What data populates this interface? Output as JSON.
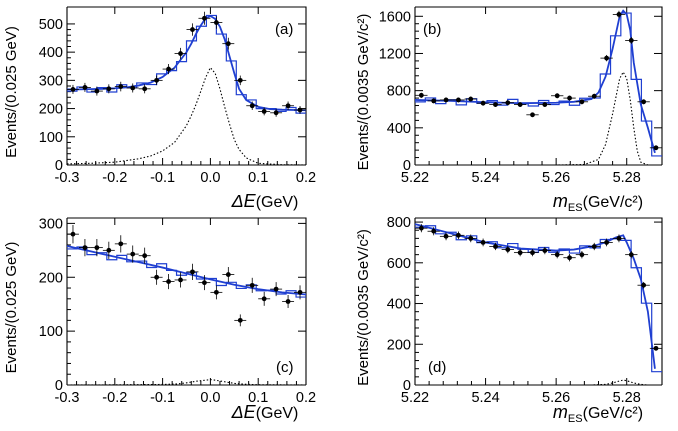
{
  "chart_data": [
    {
      "id": "a",
      "type": "scatter",
      "panel_label": "(a)",
      "ylabel": "Events/(0.025 GeV)",
      "xlabel_symbol": "ΔE",
      "xlabel_unit": "(GeV)",
      "xlim": [
        -0.3,
        0.2
      ],
      "ylim": [
        0,
        560
      ],
      "xticks": [
        -0.3,
        -0.2,
        -0.1,
        0,
        0.1,
        0.2
      ],
      "xtick_labels": [
        "-0.3",
        "-0.2",
        "-0.1",
        "0.0",
        "0.1",
        "0.2"
      ],
      "yticks": [
        0,
        100,
        200,
        300,
        400,
        500
      ],
      "ytick_labels": [
        "0",
        "100",
        "200",
        "300",
        "400",
        "500"
      ],
      "data_points": {
        "x": [
          -0.2875,
          -0.2625,
          -0.2375,
          -0.2125,
          -0.1875,
          -0.1625,
          -0.1375,
          -0.1125,
          -0.0875,
          -0.0625,
          -0.0375,
          -0.0125,
          0.0125,
          0.0375,
          0.0625,
          0.0875,
          0.1125,
          0.1375,
          0.1625,
          0.1875
        ],
        "y": [
          268,
          275,
          262,
          270,
          278,
          273,
          270,
          300,
          340,
          395,
          480,
          520,
          505,
          430,
          300,
          210,
          190,
          185,
          210,
          195
        ],
        "yerr": [
          16,
          16,
          16,
          16,
          17,
          16,
          16,
          17,
          18,
          20,
          22,
          23,
          22,
          21,
          17,
          15,
          14,
          14,
          15,
          14
        ]
      },
      "fit_total": {
        "x": [
          -0.3,
          -0.275,
          -0.25,
          -0.225,
          -0.2,
          -0.175,
          -0.15,
          -0.125,
          -0.1,
          -0.075,
          -0.05,
          -0.04,
          -0.03,
          -0.02,
          -0.01,
          0.0,
          0.01,
          0.02,
          0.03,
          0.04,
          0.05,
          0.06,
          0.075,
          0.1,
          0.125,
          0.15,
          0.175,
          0.2
        ],
        "y": [
          268,
          268,
          269,
          270,
          272,
          275,
          282,
          292,
          312,
          345,
          400,
          430,
          465,
          495,
          520,
          528,
          518,
          490,
          445,
          385,
          325,
          270,
          230,
          206,
          198,
          196,
          195,
          194
        ]
      },
      "fit_signal": {
        "x": [
          -0.3,
          -0.25,
          -0.2,
          -0.15,
          -0.125,
          -0.1,
          -0.075,
          -0.05,
          -0.04,
          -0.03,
          -0.02,
          -0.01,
          0.0,
          0.01,
          0.02,
          0.03,
          0.04,
          0.05,
          0.06,
          0.075,
          0.1,
          0.15,
          0.2
        ],
        "y": [
          4,
          6,
          10,
          22,
          32,
          50,
          80,
          140,
          175,
          215,
          262,
          310,
          345,
          325,
          270,
          205,
          145,
          90,
          55,
          25,
          6,
          1,
          0
        ]
      }
    },
    {
      "id": "b",
      "type": "scatter",
      "panel_label": "(b)",
      "ylabel": "Events/(0.0035 GeV/c²)",
      "xlabel_symbol": "m",
      "xlabel_subscript": "ES",
      "xlabel_unit": "(GeV/c²)",
      "xlim": [
        5.22,
        5.29
      ],
      "ylim": [
        0,
        1700
      ],
      "xticks": [
        5.22,
        5.24,
        5.26,
        5.28
      ],
      "xtick_labels": [
        "5.22",
        "5.24",
        "5.26",
        "5.28"
      ],
      "yticks": [
        0,
        400,
        800,
        1200,
        1600
      ],
      "ytick_labels": [
        "0",
        "400",
        "800",
        "1200",
        "1600"
      ],
      "data_points": {
        "x": [
          5.2218,
          5.2253,
          5.2288,
          5.2323,
          5.2358,
          5.2393,
          5.2428,
          5.2463,
          5.2498,
          5.2533,
          5.2568,
          5.2603,
          5.2638,
          5.2673,
          5.2708,
          5.2743,
          5.2778,
          5.2813,
          5.2848,
          5.2883
        ],
        "y": [
          750,
          690,
          700,
          700,
          710,
          665,
          650,
          670,
          650,
          540,
          650,
          745,
          720,
          680,
          740,
          1150,
          1620,
          1340,
          680,
          185
        ],
        "yerr": [
          27,
          26,
          26,
          26,
          27,
          26,
          25,
          26,
          25,
          23,
          25,
          27,
          27,
          26,
          27,
          34,
          40,
          37,
          26,
          14
        ]
      },
      "fit_total": {
        "x": [
          5.22,
          5.23,
          5.24,
          5.25,
          5.26,
          5.265,
          5.27,
          5.272,
          5.274,
          5.276,
          5.278,
          5.279,
          5.28,
          5.281,
          5.282,
          5.284,
          5.286,
          5.288
        ],
        "y": [
          700,
          690,
          675,
          665,
          670,
          680,
          710,
          780,
          950,
          1250,
          1600,
          1660,
          1620,
          1450,
          1100,
          650,
          400,
          130
        ]
      },
      "fit_signal": {
        "x": [
          5.22,
          5.26,
          5.268,
          5.272,
          5.274,
          5.276,
          5.278,
          5.279,
          5.28,
          5.281,
          5.282,
          5.283,
          5.284,
          5.286
        ],
        "y": [
          0,
          0,
          5,
          60,
          220,
          550,
          930,
          1000,
          930,
          700,
          400,
          150,
          30,
          0
        ]
      }
    },
    {
      "id": "c",
      "type": "scatter",
      "panel_label": "(c)",
      "ylabel": "Events/(0.025 GeV)",
      "xlabel_symbol": "ΔE",
      "xlabel_unit": "(GeV)",
      "xlim": [
        -0.3,
        0.2
      ],
      "ylim": [
        0,
        310
      ],
      "xticks": [
        -0.3,
        -0.2,
        -0.1,
        0,
        0.1,
        0.2
      ],
      "xtick_labels": [
        "-0.3",
        "-0.2",
        "-0.1",
        "0.0",
        "0.1",
        "0.2"
      ],
      "yticks": [
        0,
        100,
        200,
        300
      ],
      "ytick_labels": [
        "0",
        "100",
        "200",
        "300"
      ],
      "data_points": {
        "x": [
          -0.2875,
          -0.2625,
          -0.2375,
          -0.2125,
          -0.1875,
          -0.1625,
          -0.1375,
          -0.1125,
          -0.0875,
          -0.0625,
          -0.0375,
          -0.0125,
          0.0125,
          0.0375,
          0.0625,
          0.0875,
          0.1125,
          0.1375,
          0.1625,
          0.1875
        ],
        "y": [
          280,
          255,
          255,
          250,
          262,
          243,
          240,
          200,
          192,
          195,
          210,
          190,
          172,
          205,
          120,
          185,
          160,
          178,
          155,
          172
        ],
        "yerr": [
          17,
          16,
          16,
          16,
          16,
          16,
          15,
          14,
          14,
          14,
          15,
          14,
          13,
          14,
          11,
          14,
          13,
          13,
          12,
          13
        ]
      },
      "fit_total": {
        "x": [
          -0.3,
          -0.25,
          -0.2,
          -0.15,
          -0.1,
          -0.05,
          0.0,
          0.05,
          0.1,
          0.15,
          0.2
        ],
        "y": [
          258,
          248,
          238,
          228,
          218,
          207,
          196,
          186,
          178,
          172,
          168
        ]
      },
      "fit_signal": {
        "x": [
          -0.3,
          -0.2,
          -0.1,
          -0.07,
          -0.05,
          -0.03,
          -0.01,
          0.0,
          0.01,
          0.03,
          0.05,
          0.07,
          0.1,
          0.2
        ],
        "y": [
          0,
          0.3,
          1,
          2,
          4,
          7,
          9,
          10,
          9,
          6,
          3,
          1.5,
          0.5,
          0
        ]
      }
    },
    {
      "id": "d",
      "type": "scatter",
      "panel_label": "(d)",
      "ylabel": "Events/(0.0035 GeV/c²)",
      "xlabel_symbol": "m",
      "xlabel_subscript": "ES",
      "xlabel_unit": "(GeV/c²)",
      "xlim": [
        5.22,
        5.29
      ],
      "ylim": [
        0,
        820
      ],
      "xticks": [
        5.22,
        5.24,
        5.26,
        5.28
      ],
      "xtick_labels": [
        "5.22",
        "5.24",
        "5.26",
        "5.28"
      ],
      "yticks": [
        0,
        200,
        400,
        600,
        800
      ],
      "ytick_labels": [
        "0",
        "200",
        "400",
        "600",
        "800"
      ],
      "data_points": {
        "x": [
          5.2218,
          5.2253,
          5.2288,
          5.2323,
          5.2358,
          5.2393,
          5.2428,
          5.2463,
          5.2498,
          5.2533,
          5.2568,
          5.2603,
          5.2638,
          5.2673,
          5.2708,
          5.2743,
          5.2778,
          5.2813,
          5.2848,
          5.2883
        ],
        "y": [
          770,
          755,
          730,
          735,
          720,
          700,
          680,
          665,
          650,
          650,
          660,
          640,
          625,
          640,
          680,
          700,
          720,
          640,
          490,
          180
        ],
        "yerr": [
          20,
          20,
          19,
          19,
          19,
          19,
          18,
          18,
          18,
          18,
          18,
          18,
          18,
          18,
          18,
          19,
          19,
          18,
          16,
          10
        ]
      },
      "fit_total": {
        "x": [
          5.22,
          5.23,
          5.24,
          5.25,
          5.26,
          5.265,
          5.27,
          5.274,
          5.277,
          5.279,
          5.28,
          5.282,
          5.284,
          5.286,
          5.287,
          5.288
        ],
        "y": [
          790,
          745,
          700,
          670,
          660,
          665,
          680,
          700,
          725,
          735,
          700,
          620,
          520,
          360,
          220,
          80
        ]
      },
      "fit_signal": {
        "x": [
          5.22,
          5.27,
          5.274,
          5.276,
          5.278,
          5.279,
          5.28,
          5.282,
          5.284,
          5.286
        ],
        "y": [
          0,
          0,
          3,
          10,
          20,
          24,
          21,
          10,
          3,
          0
        ]
      }
    }
  ]
}
